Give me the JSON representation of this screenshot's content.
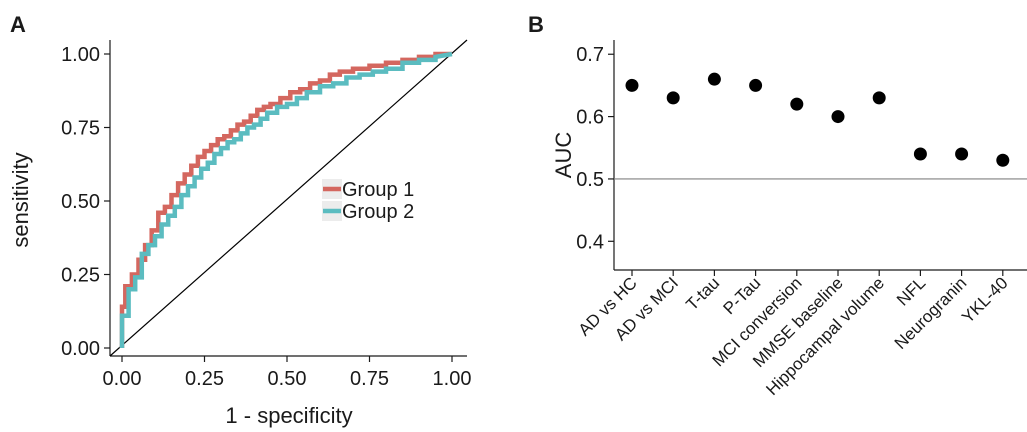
{
  "chart_data": [
    {
      "panel": "A",
      "type": "line",
      "title": "",
      "xlabel": "1 - specificity",
      "ylabel": "sensitivity",
      "xlim": [
        0,
        1
      ],
      "ylim": [
        0,
        1
      ],
      "x_ticks": [
        "0.00",
        "0.25",
        "0.50",
        "0.75",
        "1.00"
      ],
      "y_ticks": [
        "0.00",
        "0.25",
        "0.50",
        "0.75",
        "1.00"
      ],
      "grid": false,
      "legend_position": "right-middle",
      "reference_line": "diagonal",
      "series": [
        {
          "name": "Group 1",
          "color": "#d4675f",
          "x": [
            0,
            0,
            0.01,
            0.01,
            0.03,
            0.03,
            0.05,
            0.05,
            0.07,
            0.07,
            0.09,
            0.09,
            0.11,
            0.11,
            0.13,
            0.13,
            0.15,
            0.15,
            0.17,
            0.17,
            0.19,
            0.19,
            0.21,
            0.21,
            0.23,
            0.23,
            0.25,
            0.25,
            0.27,
            0.27,
            0.29,
            0.29,
            0.31,
            0.31,
            0.33,
            0.33,
            0.35,
            0.35,
            0.37,
            0.37,
            0.39,
            0.39,
            0.41,
            0.41,
            0.43,
            0.43,
            0.45,
            0.45,
            0.48,
            0.48,
            0.51,
            0.51,
            0.54,
            0.54,
            0.57,
            0.57,
            0.6,
            0.6,
            0.63,
            0.63,
            0.66,
            0.66,
            0.7,
            0.7,
            0.75,
            0.75,
            0.8,
            0.8,
            0.85,
            0.85,
            0.9,
            0.9,
            0.95,
            0.95,
            1.0
          ],
          "y": [
            0,
            0.14,
            0.14,
            0.21,
            0.21,
            0.25,
            0.25,
            0.3,
            0.3,
            0.35,
            0.35,
            0.4,
            0.4,
            0.46,
            0.46,
            0.48,
            0.48,
            0.52,
            0.52,
            0.56,
            0.56,
            0.59,
            0.59,
            0.62,
            0.62,
            0.65,
            0.65,
            0.67,
            0.67,
            0.69,
            0.69,
            0.71,
            0.71,
            0.72,
            0.72,
            0.74,
            0.74,
            0.76,
            0.76,
            0.77,
            0.77,
            0.79,
            0.79,
            0.81,
            0.81,
            0.82,
            0.82,
            0.83,
            0.83,
            0.85,
            0.85,
            0.87,
            0.87,
            0.88,
            0.88,
            0.9,
            0.9,
            0.91,
            0.91,
            0.93,
            0.93,
            0.94,
            0.94,
            0.95,
            0.95,
            0.96,
            0.96,
            0.97,
            0.97,
            0.98,
            0.98,
            0.99,
            0.99,
            1.0,
            1.0
          ]
        },
        {
          "name": "Group 2",
          "color": "#5bbcc0",
          "x": [
            0,
            0,
            0.02,
            0.02,
            0.04,
            0.04,
            0.06,
            0.06,
            0.08,
            0.08,
            0.1,
            0.1,
            0.12,
            0.12,
            0.14,
            0.14,
            0.16,
            0.16,
            0.18,
            0.18,
            0.2,
            0.2,
            0.22,
            0.22,
            0.24,
            0.24,
            0.26,
            0.26,
            0.28,
            0.28,
            0.3,
            0.3,
            0.32,
            0.32,
            0.34,
            0.34,
            0.36,
            0.36,
            0.38,
            0.38,
            0.4,
            0.4,
            0.42,
            0.42,
            0.44,
            0.44,
            0.47,
            0.47,
            0.5,
            0.5,
            0.53,
            0.53,
            0.56,
            0.56,
            0.6,
            0.6,
            0.64,
            0.64,
            0.68,
            0.68,
            0.72,
            0.72,
            0.76,
            0.76,
            0.8,
            0.8,
            0.85,
            0.85,
            0.9,
            0.9,
            0.95,
            0.95,
            1.0
          ],
          "y": [
            0,
            0.11,
            0.11,
            0.2,
            0.2,
            0.24,
            0.24,
            0.32,
            0.32,
            0.35,
            0.35,
            0.38,
            0.38,
            0.42,
            0.42,
            0.45,
            0.45,
            0.48,
            0.48,
            0.52,
            0.52,
            0.55,
            0.55,
            0.58,
            0.58,
            0.61,
            0.61,
            0.63,
            0.63,
            0.66,
            0.66,
            0.68,
            0.68,
            0.7,
            0.7,
            0.71,
            0.71,
            0.73,
            0.73,
            0.75,
            0.75,
            0.76,
            0.76,
            0.78,
            0.78,
            0.8,
            0.8,
            0.82,
            0.82,
            0.83,
            0.83,
            0.85,
            0.85,
            0.87,
            0.87,
            0.89,
            0.89,
            0.9,
            0.9,
            0.92,
            0.92,
            0.93,
            0.93,
            0.94,
            0.94,
            0.95,
            0.95,
            0.97,
            0.97,
            0.98,
            0.98,
            0.99,
            1.0
          ]
        }
      ]
    },
    {
      "panel": "B",
      "type": "scatter",
      "title": "",
      "xlabel": "",
      "ylabel": "AUC",
      "ylim": [
        0.37,
        0.71
      ],
      "y_ticks": [
        "0.4",
        "0.5",
        "0.6",
        "0.7"
      ],
      "grid": false,
      "reference_line": 0.5,
      "categories": [
        "AD vs HC",
        "AD vs MCI",
        "T-tau",
        "P-Tau",
        "MCI conversion",
        "MMSE baseline",
        "Hippocampal volume",
        "NFL",
        "Neurogranin",
        "YKL-40"
      ],
      "values": [
        0.65,
        0.63,
        0.66,
        0.65,
        0.62,
        0.6,
        0.63,
        0.54,
        0.54,
        0.53
      ]
    }
  ]
}
